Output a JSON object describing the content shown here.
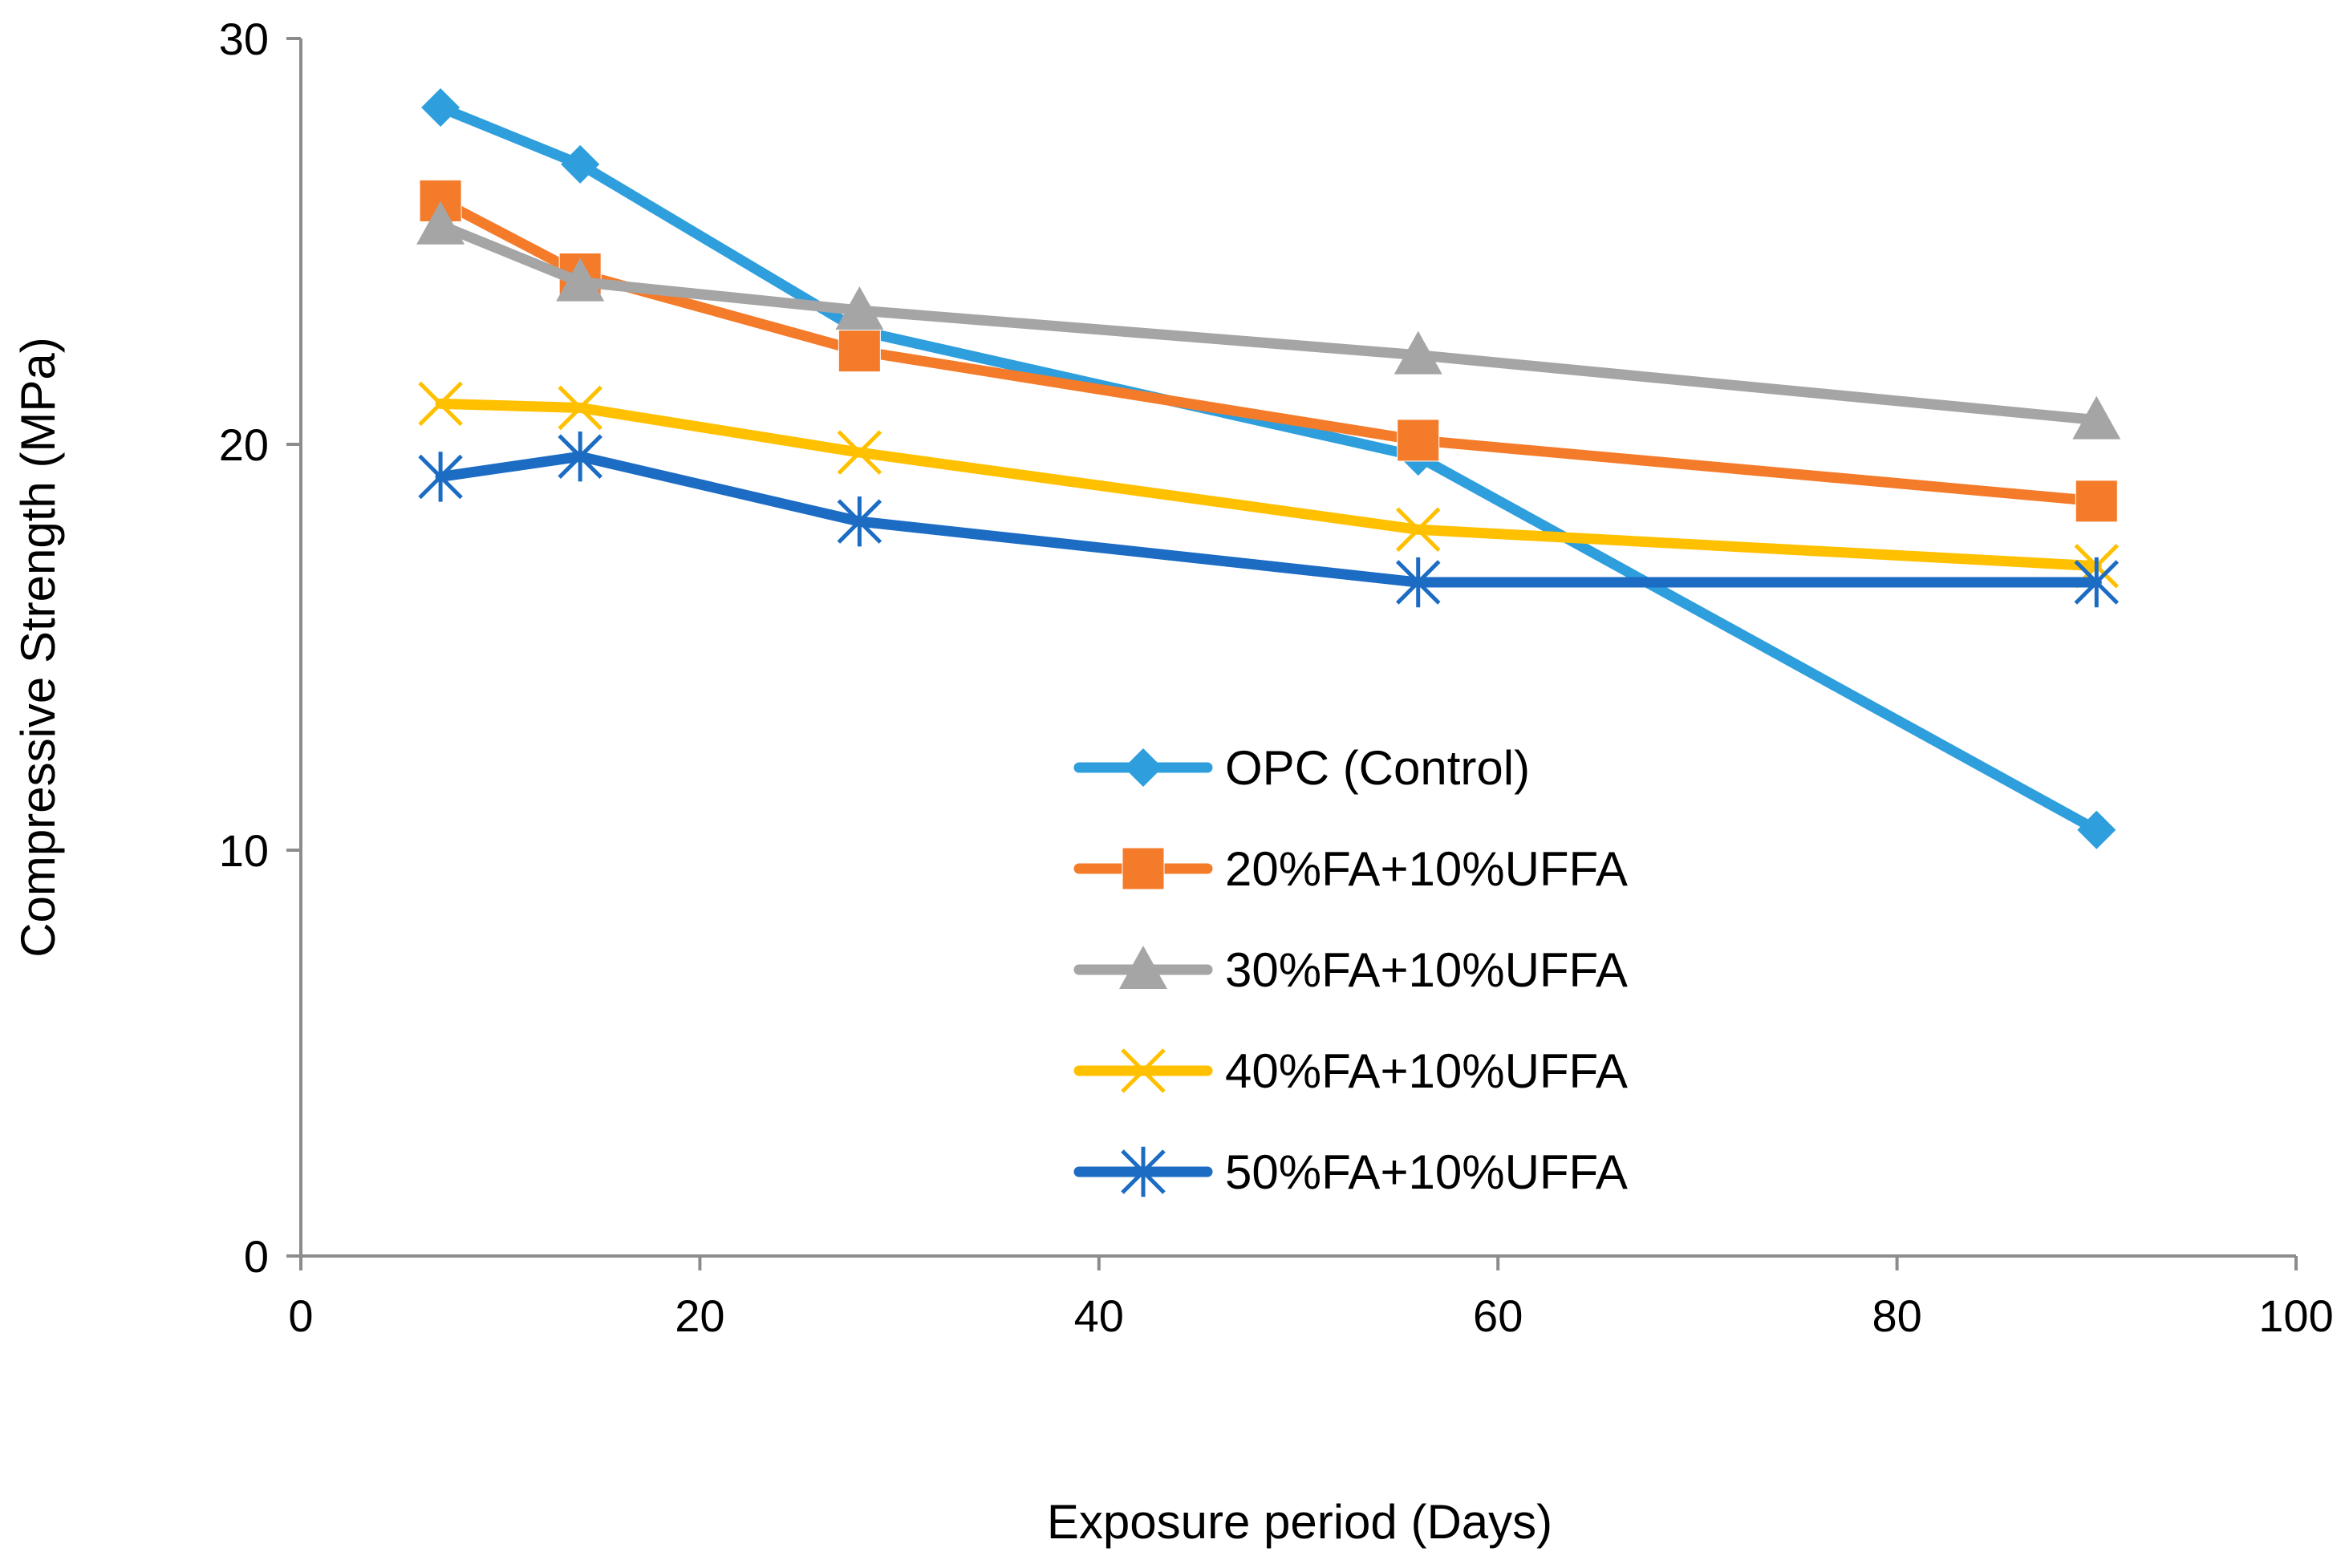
{
  "chart_data": {
    "type": "line",
    "title": "",
    "xlabel": "Exposure period (Days)",
    "ylabel": "Compressive Strength (MPa)",
    "xlim": [
      0,
      100
    ],
    "ylim": [
      0,
      30
    ],
    "x_ticks": [
      "0",
      "20",
      "40",
      "60",
      "80",
      "100"
    ],
    "y_ticks": [
      "0",
      "10",
      "20",
      "30"
    ],
    "grid": false,
    "legend_position": "center-right",
    "x": [
      7,
      14,
      28,
      56,
      90
    ],
    "series": [
      {
        "name": "OPC (Control)",
        "color": "#2E9FDC",
        "marker": "diamond",
        "values": [
          28.3,
          26.9,
          22.8,
          19.7,
          10.5
        ]
      },
      {
        "name": "20%FA+10%UFFA",
        "color": "#F47B2A",
        "marker": "square",
        "values": [
          26.0,
          24.2,
          22.3,
          20.1,
          18.6
        ]
      },
      {
        "name": "30%FA+10%UFFA",
        "color": "#A5A5A5",
        "marker": "triangle",
        "values": [
          25.4,
          24.0,
          23.3,
          22.2,
          20.6
        ]
      },
      {
        "name": "40%FA+10%UFFA",
        "color": "#FFC000",
        "marker": "x",
        "values": [
          21.0,
          20.9,
          19.8,
          17.9,
          17.0
        ]
      },
      {
        "name": "50%FA+10%UFFA",
        "color": "#1C6CC4",
        "marker": "asterisk",
        "values": [
          19.2,
          19.7,
          18.1,
          16.6,
          16.6
        ]
      }
    ]
  }
}
